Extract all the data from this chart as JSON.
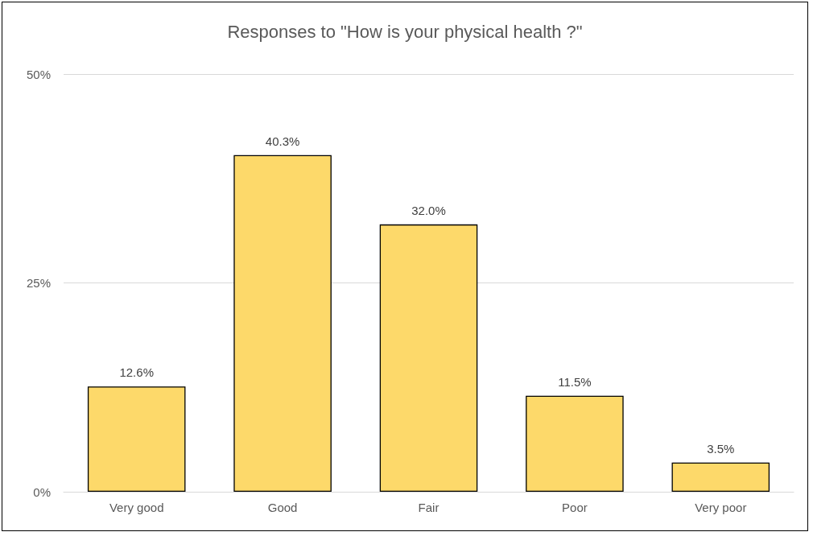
{
  "chart_data": {
    "type": "bar",
    "title": "Responses to \"How is your physical health ?\"",
    "categories": [
      "Very good",
      "Good",
      "Fair",
      "Poor",
      "Very poor"
    ],
    "values": [
      12.6,
      40.3,
      32.0,
      11.5,
      3.5
    ],
    "value_labels": [
      "12.6%",
      "40.3%",
      "32.0%",
      "11.5%",
      "3.5%"
    ],
    "color": "#fdd96a",
    "ylim": [
      0,
      50
    ],
    "yticks": [
      {
        "value": 0,
        "label": "0%"
      },
      {
        "value": 25,
        "label": "25%"
      },
      {
        "value": 50,
        "label": "50%"
      }
    ],
    "grid": "y"
  }
}
